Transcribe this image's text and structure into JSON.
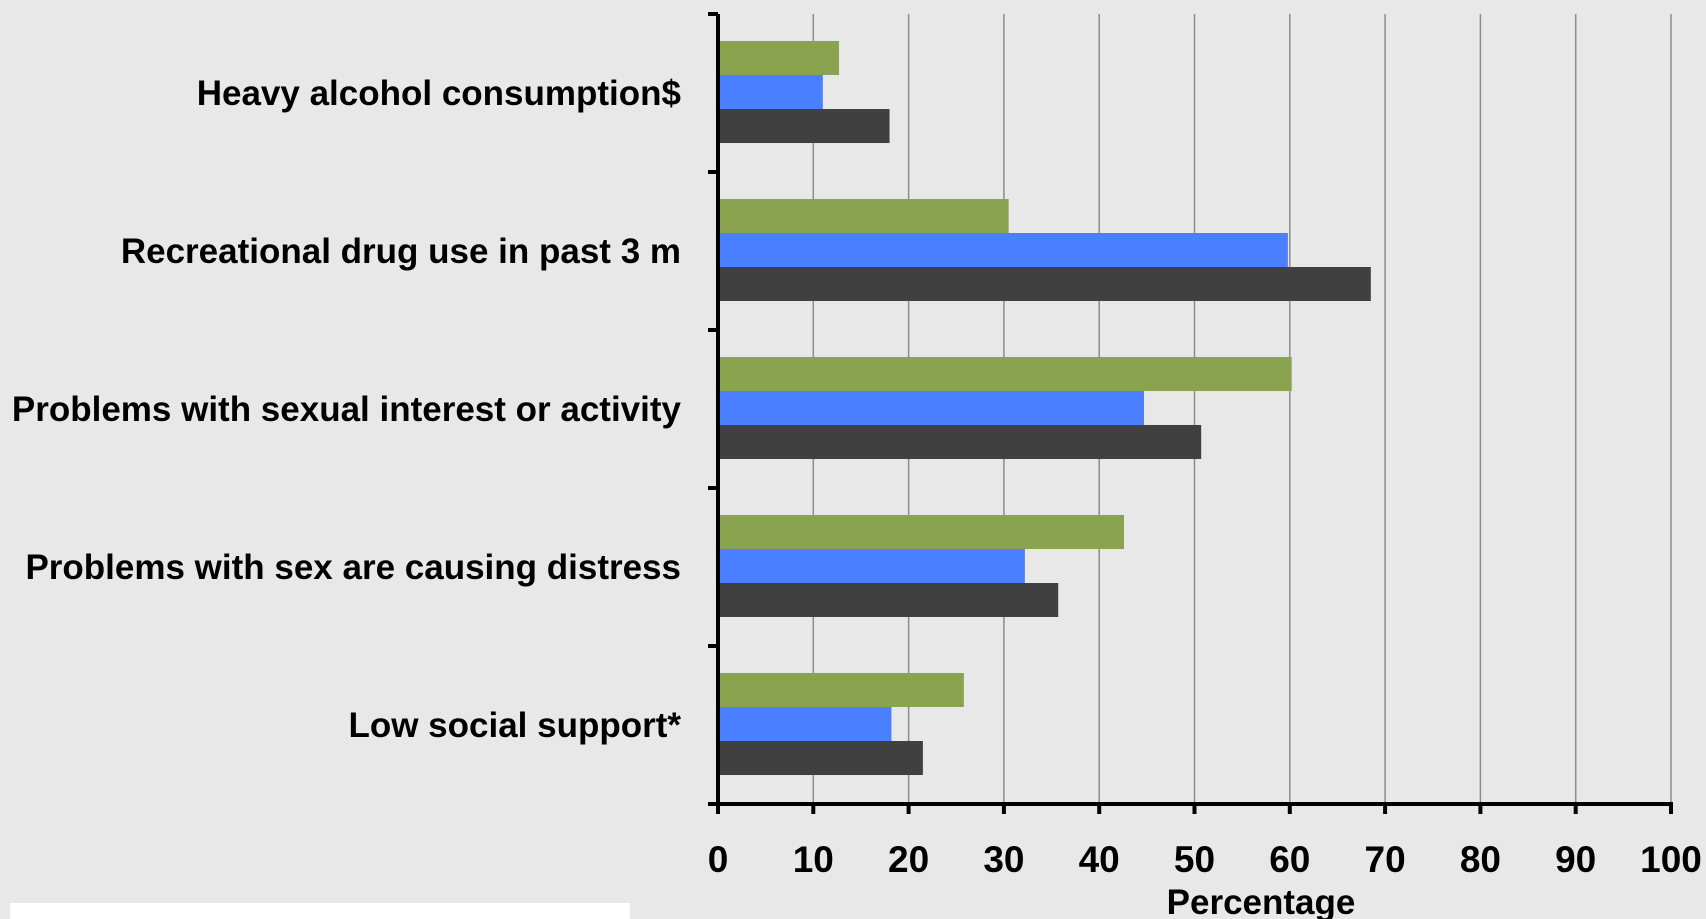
{
  "chart_data": {
    "type": "bar",
    "orientation": "horizontal",
    "categories": [
      "Heavy alcohol consumption$",
      "Recreational drug use in past 3 m",
      "Problems with sexual interest or activity",
      "Problems with sex are causing distress",
      "Low social support*"
    ],
    "series": [
      {
        "color": "#8aa34f",
        "values": [
          12.7,
          30.5,
          60.2,
          42.6,
          25.8
        ]
      },
      {
        "color": "#4a80ff",
        "values": [
          11.0,
          59.8,
          44.7,
          32.2,
          18.2
        ]
      },
      {
        "color": "#404040",
        "values": [
          18.0,
          68.5,
          50.7,
          35.7,
          21.5
        ]
      }
    ],
    "xlabel": "Percentage",
    "xlim": [
      0,
      100
    ],
    "x_ticks": [
      "0",
      "10",
      "20",
      "30",
      "40",
      "50",
      "60",
      "70",
      "80",
      "90",
      "100"
    ],
    "grid": "vertical",
    "legend": "bottom-left (cropped)"
  }
}
